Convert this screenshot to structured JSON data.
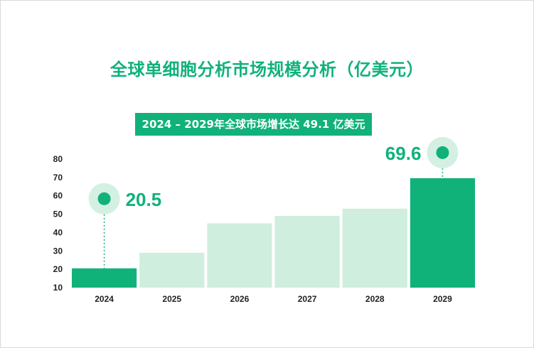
{
  "header": {
    "title": "全球单细胞分析市场规模分析（亿美元）",
    "subtitle": "2024 – 2029年全球市场增长达 49.1 亿美元"
  },
  "colors": {
    "accent": "#10b27a",
    "bar_light": "#cfeedd",
    "halo": "#d3f0e3"
  },
  "chart_data": {
    "type": "bar",
    "title": "全球单细胞分析市场规模分析（亿美元）",
    "subtitle": "2024 – 2029年全球市场增长达 49.1 亿美元",
    "categories": [
      "2024",
      "2025",
      "2026",
      "2027",
      "2028",
      "2029"
    ],
    "values": [
      20.5,
      29,
      45,
      49,
      53,
      69.6
    ],
    "highlighted": [
      true,
      false,
      false,
      false,
      false,
      true
    ],
    "data_labels": [
      {
        "category": "2024",
        "text": "20.5"
      },
      {
        "category": "2029",
        "text": "69.6"
      }
    ],
    "yticks": [
      10,
      20,
      30,
      40,
      50,
      60,
      70,
      80
    ],
    "ylim": [
      10,
      80
    ],
    "xlabel": "",
    "ylabel": "",
    "grid": false,
    "legend": "none"
  }
}
